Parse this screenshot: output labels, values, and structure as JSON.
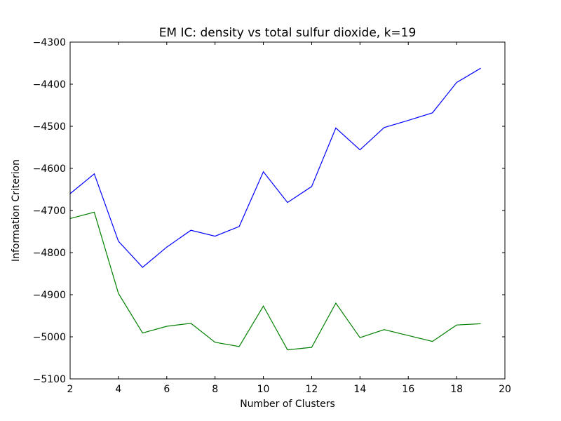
{
  "chart_data": {
    "type": "line",
    "title": "EM IC: density vs total sulfur dioxide, k=19",
    "xlabel": "Number of Clusters",
    "ylabel": "Information Criterion",
    "xlim": [
      2,
      20
    ],
    "ylim": [
      -5100,
      -4300
    ],
    "xticks": [
      2,
      4,
      6,
      8,
      10,
      12,
      14,
      16,
      18,
      20
    ],
    "yticks": [
      -5100,
      -5000,
      -4900,
      -4800,
      -4700,
      -4600,
      -4500,
      -4400,
      -4300
    ],
    "xtick_labels": [
      "2",
      "4",
      "6",
      "8",
      "10",
      "12",
      "14",
      "16",
      "18",
      "20"
    ],
    "ytick_labels": [
      "−5100",
      "−5000",
      "−4900",
      "−4800",
      "−4700",
      "−4600",
      "−4500",
      "−4400",
      "−4300"
    ],
    "grid": false,
    "legend": "none",
    "x": [
      2,
      3,
      4,
      5,
      6,
      7,
      8,
      9,
      10,
      11,
      12,
      13,
      14,
      15,
      16,
      17,
      18,
      19
    ],
    "series": [
      {
        "color": "#0000ff",
        "values": [
          -4660,
          -4613,
          -4773,
          -4835,
          -4787,
          -4747,
          -4761,
          -4738,
          -4608,
          -4681,
          -4643,
          -4504,
          -4556,
          -4503,
          -4486,
          -4468,
          -4396,
          -4362
        ]
      },
      {
        "color": "#008000",
        "values": [
          -4719,
          -4704,
          -4897,
          -4991,
          -4975,
          -4968,
          -5013,
          -5023,
          -4927,
          -5031,
          -5025,
          -4920,
          -5002,
          -4983,
          -4997,
          -5011,
          -4972,
          -4969
        ]
      }
    ]
  }
}
